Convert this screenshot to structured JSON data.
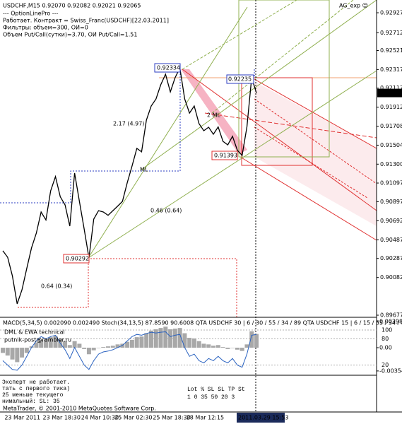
{
  "header": {
    "symbol_line": "USDCHF,M15  0.92070 0.92082 0.92021 0.92065",
    "lines": [
      "--- OptionLinePro ---",
      "Работает. Контракт = Swiss_Franc(USDCHF)[22.03.2011]",
      "Фильтры: объем=300, ОИ=0",
      "Объем Put/Call(сутки)=3.70, ОИ Put/Call=1.51"
    ],
    "expert": "AG_exp ☺"
  },
  "chart_data": [
    {
      "type": "line",
      "color": "#000000",
      "categories": [
        null,
        null,
        null,
        "23 Mar 2011",
        null,
        null,
        null,
        null,
        null,
        null,
        null,
        "23 Mar 18:30",
        null,
        null,
        null,
        null,
        null,
        null,
        null,
        "24 Mar 10:30",
        null,
        null,
        null,
        null,
        null,
        null,
        "25 Mar 02:30",
        null,
        null,
        null,
        null,
        null,
        null,
        null,
        "25 Mar 18:30",
        null,
        null,
        null,
        null,
        null,
        null,
        "28 Mar 12:15",
        null,
        null,
        null,
        null,
        null,
        null,
        null,
        null,
        null,
        null,
        null,
        "2011.03.29 15:53"
      ],
      "values": [
        0.90369,
        0.903,
        0.901,
        0.89799,
        0.8995,
        0.9018,
        0.904,
        0.90558,
        0.90786,
        0.907,
        0.91014,
        0.91166,
        0.9095,
        0.90862,
        0.90634,
        0.91204,
        0.909,
        0.906,
        0.90292,
        0.9071,
        0.908,
        0.90786,
        0.9075,
        0.908,
        0.9085,
        0.909,
        0.911,
        0.9128,
        0.91469,
        0.91432,
        0.91773,
        0.91925,
        0.92,
        0.92153,
        0.92267,
        0.92077,
        0.92229,
        0.92334,
        0.92001,
        0.91849,
        0.91925,
        0.91735,
        0.91659,
        0.91697,
        0.91621,
        0.917,
        0.91545,
        0.91507,
        0.916,
        0.9145,
        0.91393,
        0.917,
        0.92229,
        0.92065
      ],
      "ylim": [
        0.89662,
        0.93064
      ],
      "yticks": [
        0.92927,
        0.92712,
        0.92521,
        0.92317,
        0.92117,
        0.91912,
        0.91708,
        0.91504,
        {
          "value": 0.913,
          "label": "0.91300"
        },
        0.91097,
        0.90897,
        0.90692,
        0.90487,
        0.90287,
        0.90082,
        0.89677
      ],
      "annotations": [
        "2.17 (4.97)",
        "0.46 (0.64)",
        "0.64 (0.34)",
        "2 ML",
        "ML",
        "0.92235"
      ]
    },
    {
      "type": "bar",
      "title": "MACD(5,34,5) 0.002090 0.002490  Stoch(34,13,5) 87.8590 90.6008  QTA USDCHF 30 | 6 / 30 / 55 / 34 / 89  QTA USDCHF 15 | 6 / 15 / 55 / 34 / 89",
      "notes": [
        "DML & EWA technical",
        "putnik-post@rambler.ru"
      ],
      "series": [
        {
          "color": "#a8a8a8",
          "values": [
            -0.0008,
            -0.0012,
            -0.0018,
            -0.0022,
            -0.0015,
            -0.0008,
            0.0002,
            0.0008,
            0.0012,
            0.0013,
            0.0016,
            0.0018,
            0.0014,
            0.001,
            0.0004,
            0.001,
            0.0006,
            -0.0002,
            -0.001,
            -0.0004,
            0,
            0.0001,
            0.0002,
            0.0003,
            0.0005,
            0.0006,
            0.0009,
            0.0012,
            0.0016,
            0.0017,
            0.0022,
            0.0026,
            0.0028,
            0.003,
            0.0032,
            0.0028,
            0.0029,
            0.003,
            0.0022,
            0.0015,
            0.0014,
            0.001,
            0.0006,
            0.0005,
            0.0003,
            0.0004,
            0.0001,
            -0.0002,
            0,
            -0.0003,
            -0.0005,
            0.0005,
            0.0025,
            0.00209
          ]
        },
        {
          "color": "#2a62c0",
          "type": "line",
          "axis": "y2",
          "values": [
            30,
            20,
            10,
            8,
            20,
            40,
            60,
            75,
            85,
            80,
            85,
            88,
            70,
            55,
            35,
            60,
            40,
            20,
            10,
            30,
            45,
            50,
            52,
            55,
            60,
            65,
            75,
            85,
            90,
            88,
            92,
            95,
            93,
            95,
            96,
            85,
            88,
            90,
            60,
            40,
            45,
            30,
            25,
            35,
            30,
            40,
            30,
            25,
            35,
            20,
            15,
            45,
            88,
            90
          ]
        }
      ],
      "ylim": [
        -0.00409,
        0.00452
      ],
      "yticks": [
        0.003981,
        {
          "value": 0,
          "label": "0.00"
        },
        -0.003543
      ],
      "y2lim": [
        -1.6,
        127.4
      ],
      "y2ticks": [
        100,
        80,
        20
      ]
    }
  ],
  "overlay": {
    "messages": [
      "Эксперт не работает.",
      "тать с первого тика)",
      " 25 меньше текущего",
      "нимальный: SL: 35"
    ],
    "table": [
      "Lot  %  SL  SL  TP  St",
      "1    0  35  50  20  3"
    ]
  },
  "footer": "MetaTrader, © 2001-2010 MetaQuotes Software Corp."
}
